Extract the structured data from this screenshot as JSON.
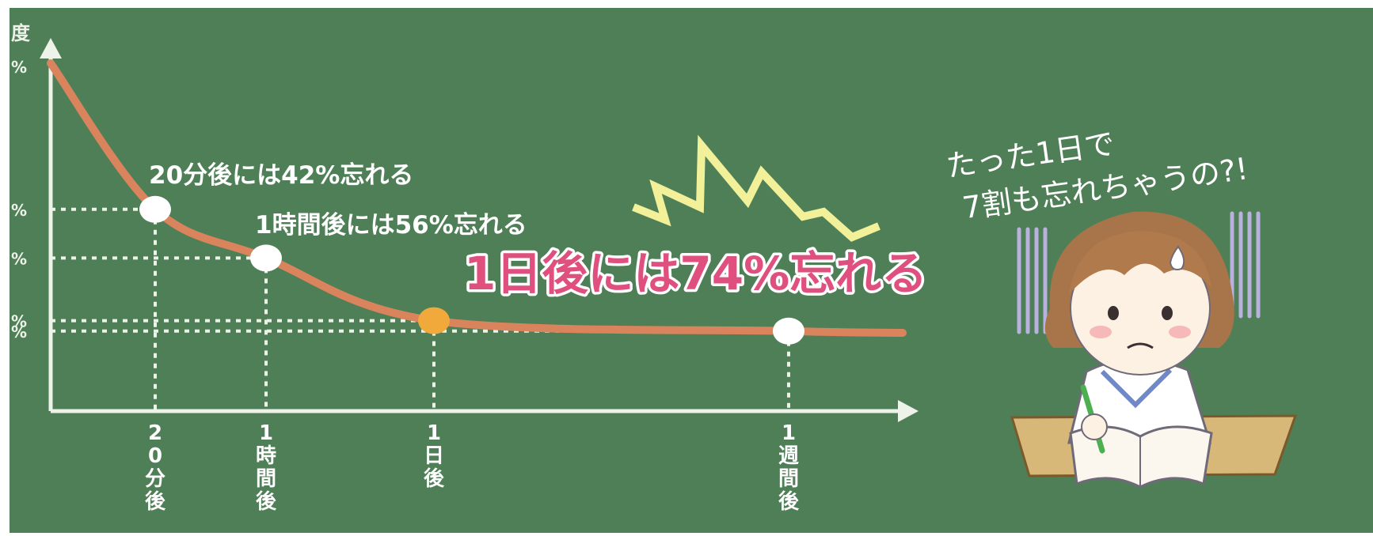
{
  "colors": {
    "board": "#4f7f57",
    "board_edge": "#ffffff",
    "curve": "#d9845c",
    "axis": "#eef3ea",
    "grid": "#eef3ea",
    "marker": "#ffffff",
    "highlight_marker": "#f2a93b",
    "highlight_text": "#e0507e",
    "accent_yellow": "#f2f099",
    "shake_lines": "#b9b2df"
  },
  "chart_data": {
    "type": "line",
    "title": "",
    "y_axis_label_fragment": "度",
    "y_tick_fragments": [
      "%",
      "%",
      "%",
      "%",
      "%"
    ],
    "x_tick_labels": [
      "20分後",
      "1時間後",
      "1日後",
      "1週間後"
    ],
    "series": [
      {
        "x": [
          0,
          20,
          60,
          1440,
          10080
        ],
        "y": [
          100,
          58,
          44,
          26,
          23
        ]
      }
    ],
    "markers": [
      {
        "x": 20,
        "y": 58,
        "label": "20分後には42%忘れる",
        "highlight": false
      },
      {
        "x": 60,
        "y": 44,
        "label": "1時間後には56%忘れる",
        "highlight": false
      },
      {
        "x": 1440,
        "y": 26,
        "label": "1日後には74%忘れる",
        "highlight": true
      },
      {
        "x": 10080,
        "y": 23,
        "label": "",
        "highlight": false
      }
    ]
  },
  "speech": {
    "line1": "たった1日で",
    "line2": "7割も忘れちゃうの?!"
  },
  "icons": [
    "zigzag-shock-icon",
    "worried-student-illustration"
  ]
}
